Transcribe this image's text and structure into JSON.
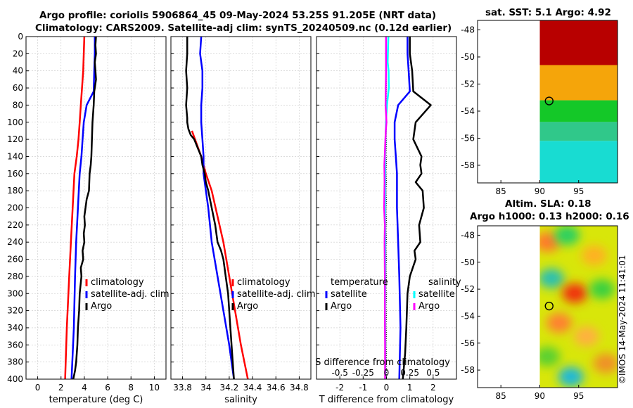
{
  "header": {
    "line1": "Argo profile: coriolis 5906864_45 09-May-2024 53.25S 91.205E (NRT data)",
    "line2": "Climatology: CARS2009. Satellite-adj clim: synTS_20240509.nc (0.12d earlier)"
  },
  "footer": {
    "stamp": "©IMOS 14-May-2024 11:41:01"
  },
  "colors": {
    "climatology": "#ff0000",
    "satellite": "#0000ff",
    "argo": "#000000",
    "sal_satellite": "#00ffff",
    "sal_argo": "#ff00ff"
  },
  "chart_data": [
    {
      "type": "line",
      "title": "",
      "xlabel": "temperature (deg C)",
      "ylabel": "",
      "xlim": [
        -1,
        11
      ],
      "ylim": [
        400,
        0
      ],
      "xticks": [
        "0",
        "2",
        "4",
        "6",
        "8",
        "10"
      ],
      "xtick_values": [
        0,
        2,
        4,
        6,
        8,
        10
      ],
      "yticks": [
        "0",
        "20",
        "40",
        "60",
        "80",
        "100",
        "120",
        "140",
        "160",
        "180",
        "200",
        "220",
        "240",
        "260",
        "280",
        "300",
        "320",
        "340",
        "360",
        "380",
        "400"
      ],
      "grid": true,
      "legend": "lower-right",
      "series": [
        {
          "name": "climatology",
          "color": "#ff0000",
          "x": [
            4.0,
            3.95,
            3.9,
            3.8,
            3.7,
            3.6,
            3.5,
            3.35,
            3.15,
            3.0,
            2.85,
            2.7,
            2.5,
            2.35
          ],
          "y": [
            0,
            20,
            40,
            60,
            80,
            100,
            120,
            140,
            160,
            200,
            240,
            280,
            340,
            400
          ]
        },
        {
          "name": "satellite-adj. clim",
          "color": "#0000ff",
          "x": [
            4.9,
            4.9,
            4.85,
            4.8,
            4.2,
            3.95,
            3.85,
            3.75,
            3.6,
            3.45,
            3.3,
            3.2,
            3.1,
            2.9
          ],
          "y": [
            0,
            20,
            40,
            64,
            80,
            100,
            120,
            140,
            160,
            200,
            240,
            280,
            340,
            400
          ]
        },
        {
          "name": "Argo",
          "color": "#000000",
          "x": [
            5.0,
            4.95,
            5.0,
            4.9,
            4.95,
            5.0,
            4.9,
            4.85,
            4.8,
            4.7,
            4.65,
            4.6,
            4.55,
            4.45,
            4.4,
            4.2,
            4.1,
            4.0,
            4.05,
            3.95,
            4.0,
            3.85,
            3.9,
            3.7,
            3.75,
            3.6,
            3.55,
            3.45,
            3.4,
            3.3,
            3.2,
            3.05
          ],
          "y": [
            0,
            10,
            20,
            30,
            40,
            50,
            60,
            64,
            80,
            100,
            120,
            140,
            150,
            160,
            180,
            190,
            200,
            210,
            220,
            230,
            240,
            250,
            260,
            270,
            280,
            300,
            320,
            340,
            360,
            380,
            390,
            400
          ]
        }
      ],
      "legend_entries": [
        "climatology",
        "satellite-adj. clim",
        "Argo"
      ]
    },
    {
      "type": "line",
      "title": "",
      "xlabel": "salinity",
      "ylabel": "",
      "xlim": [
        33.7,
        34.9
      ],
      "ylim": [
        400,
        0
      ],
      "xticks": [
        "33.8",
        "34",
        "34.2",
        "34.4",
        "34.6",
        "34.8"
      ],
      "xtick_values": [
        33.8,
        34.0,
        34.2,
        34.4,
        34.6,
        34.8
      ],
      "grid": true,
      "legend": "lower-right",
      "series": [
        {
          "name": "climatology",
          "color": "#ff0000",
          "x": [
            33.88,
            33.92,
            33.96,
            34.0,
            34.05,
            34.1,
            34.15,
            34.2,
            34.25,
            34.3,
            34.36
          ],
          "y": [
            110,
            125,
            140,
            160,
            180,
            210,
            240,
            280,
            320,
            360,
            400
          ]
        },
        {
          "name": "satellite-adj. clim",
          "color": "#0000ff",
          "x": [
            33.96,
            33.95,
            33.97,
            33.97,
            33.96,
            33.96,
            33.97,
            33.98,
            33.98,
            34.0,
            34.02,
            34.05,
            34.1,
            34.15,
            34.2,
            34.24
          ],
          "y": [
            0,
            20,
            40,
            60,
            80,
            100,
            120,
            140,
            160,
            180,
            200,
            240,
            280,
            320,
            360,
            400
          ]
        },
        {
          "name": "Argo",
          "color": "#000000",
          "x": [
            33.84,
            33.84,
            33.83,
            33.84,
            33.83,
            33.84,
            33.84,
            33.85,
            33.87,
            33.9,
            33.93,
            33.96,
            33.97,
            33.99,
            34.0,
            34.02,
            34.05,
            34.08,
            34.1,
            34.13,
            34.15,
            34.17,
            34.19,
            34.2,
            34.22,
            34.24
          ],
          "y": [
            0,
            20,
            40,
            60,
            80,
            95,
            100,
            108,
            115,
            120,
            130,
            140,
            150,
            160,
            170,
            180,
            200,
            220,
            240,
            250,
            260,
            280,
            300,
            320,
            360,
            400
          ]
        }
      ],
      "legend_entries": [
        "climatology",
        "satellite-adj. clim",
        "Argo"
      ]
    },
    {
      "type": "line",
      "title": "",
      "xlabel": "T difference from climatology",
      "xlabel_top": "S difference from climatology",
      "ylabel": "",
      "xlim": [
        -3,
        3
      ],
      "ylim": [
        400,
        0
      ],
      "xticks": [
        "-2",
        "-1",
        "0",
        "1",
        "2"
      ],
      "xtick_values": [
        -2,
        -1,
        0,
        1,
        2
      ],
      "xticks_top": [
        "-0.5",
        "-0.25",
        "0",
        "0.25",
        "0.5"
      ],
      "xticks_top_values": [
        -0.5,
        -0.25,
        0,
        0.25,
        0.5
      ],
      "grid": true,
      "legend_temperature_title": "temperature",
      "legend_salinity_title": "salinity",
      "series": [
        {
          "name": "satellite",
          "group": "temperature",
          "color": "#0000ff",
          "x": [
            0.9,
            0.9,
            0.95,
            1.0,
            0.5,
            0.35,
            0.35,
            0.4,
            0.45,
            0.45,
            0.5,
            0.55,
            0.6,
            0.55
          ],
          "y": [
            0,
            20,
            40,
            64,
            80,
            100,
            120,
            140,
            160,
            200,
            240,
            280,
            340,
            400
          ]
        },
        {
          "name": "Argo",
          "group": "temperature",
          "color": "#000000",
          "x": [
            1.0,
            1.0,
            1.1,
            1.15,
            1.9,
            1.25,
            1.15,
            1.5,
            1.45,
            1.5,
            1.25,
            1.55,
            1.6,
            1.4,
            1.45,
            1.2,
            1.25,
            1.0,
            0.9,
            0.85,
            0.8,
            0.7
          ],
          "y": [
            0,
            20,
            40,
            64,
            80,
            100,
            120,
            140,
            150,
            160,
            170,
            180,
            200,
            220,
            240,
            250,
            260,
            280,
            300,
            340,
            370,
            400
          ]
        },
        {
          "name": "satellite",
          "group": "salinity",
          "color": "#00ffff",
          "x": [
            0.08,
            0.06,
            0.05,
            0.09,
            0.1,
            0.02,
            -0.02,
            -0.06,
            -0.05,
            -0.06,
            -0.05,
            -0.05,
            -0.06,
            -0.05,
            -0.05
          ],
          "y": [
            0,
            20,
            30,
            40,
            60,
            80,
            100,
            140,
            160,
            200,
            240,
            280,
            320,
            360,
            400
          ]
        },
        {
          "name": "Argo",
          "group": "salinity",
          "color": "#ff00ff",
          "x": [
            -0.02,
            -0.02,
            -0.02,
            -0.03,
            -0.04,
            0.0,
            -0.03,
            -0.06,
            -0.09,
            -0.08,
            -0.1,
            -0.07,
            -0.08,
            -0.07,
            -0.07,
            -0.06,
            -0.06
          ],
          "y": [
            0,
            20,
            40,
            60,
            80,
            100,
            110,
            130,
            150,
            170,
            200,
            220,
            240,
            280,
            320,
            360,
            400
          ]
        }
      ]
    },
    {
      "type": "heatmap",
      "title": "sat. SST: 5.1 Argo: 4.92",
      "xlim": [
        82,
        100
      ],
      "ylim": [
        -59.3,
        -47.3
      ],
      "xticks": [
        "85",
        "90",
        "95"
      ],
      "xtick_values": [
        85,
        90,
        95
      ],
      "yticks": [
        "-48",
        "-50",
        "-52",
        "-54",
        "-56",
        "-58"
      ],
      "ytick_values": [
        -48,
        -50,
        -52,
        -54,
        -56,
        -58
      ],
      "data_lon_range": [
        90,
        100
      ],
      "marker": {
        "lon": 91.205,
        "lat": -53.25
      },
      "bands": [
        {
          "lat_top": -47.3,
          "lat_bottom": -50.6,
          "color": "#b80000"
        },
        {
          "lat_top": -50.6,
          "lat_bottom": -53.2,
          "color": "#f5a50a"
        },
        {
          "lat_top": -53.2,
          "lat_bottom": -54.8,
          "color": "#14c828"
        },
        {
          "lat_top": -54.8,
          "lat_bottom": -56.2,
          "color": "#30c88a"
        },
        {
          "lat_top": -56.2,
          "lat_bottom": -59.3,
          "color": "#18dcd2"
        }
      ]
    },
    {
      "type": "heatmap",
      "title": "Altim. SLA: 0.18",
      "subtitle": "Argo h1000: 0.13 h2000: 0.16",
      "xlim": [
        82,
        100
      ],
      "ylim": [
        -59.3,
        -47.3
      ],
      "xticks": [
        "85",
        "90",
        "95"
      ],
      "xtick_values": [
        85,
        90,
        95
      ],
      "yticks": [
        "-48",
        "-50",
        "-52",
        "-54",
        "-56",
        "-58"
      ],
      "ytick_values": [
        -48,
        -50,
        -52,
        -54,
        -56,
        -58
      ],
      "data_lon_range": [
        90,
        100
      ],
      "marker": {
        "lon": 91.205,
        "lat": -53.25
      },
      "base_color": "#d8e60a",
      "blobs": [
        {
          "lon": 91.0,
          "lat": -48.5,
          "color": "#ff7a2a"
        },
        {
          "lon": 93.5,
          "lat": -48.0,
          "color": "#2ad060"
        },
        {
          "lon": 97.0,
          "lat": -49.5,
          "color": "#ffb020"
        },
        {
          "lon": 91.5,
          "lat": -51.2,
          "color": "#2ac0b0"
        },
        {
          "lon": 94.5,
          "lat": -52.3,
          "color": "#f03010"
        },
        {
          "lon": 98.0,
          "lat": -52.0,
          "color": "#3ad040"
        },
        {
          "lon": 92.5,
          "lat": -54.5,
          "color": "#ff8030"
        },
        {
          "lon": 96.0,
          "lat": -55.5,
          "color": "#ffb040"
        },
        {
          "lon": 91.0,
          "lat": -57.0,
          "color": "#5ad030"
        },
        {
          "lon": 94.0,
          "lat": -58.5,
          "color": "#1ab8d8"
        },
        {
          "lon": 98.5,
          "lat": -57.5,
          "color": "#f09028"
        }
      ]
    }
  ]
}
